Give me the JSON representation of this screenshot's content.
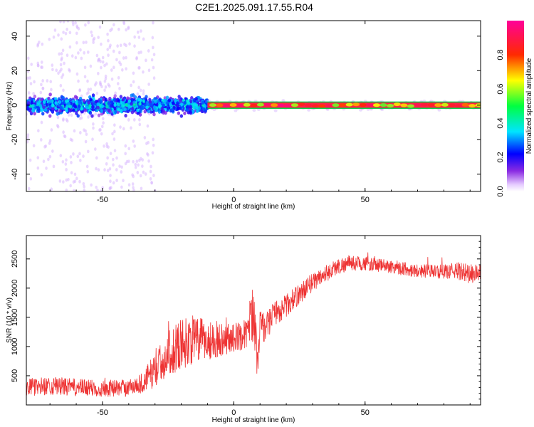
{
  "figure": {
    "title": "C2E1.2025.091.17.55.R04"
  },
  "chart_data": [
    {
      "type": "heatmap",
      "xlabel": "Height of straight line (km)",
      "ylabel": "Frequency (Hz)",
      "xlim": [
        -79,
        94
      ],
      "ylim": [
        -50,
        49
      ],
      "xticks": [
        -50,
        0,
        50
      ],
      "yticks": [
        -40,
        -20,
        0,
        20,
        40
      ],
      "colorbar": {
        "label": "Normalized spectral amplitude",
        "range": [
          0.0,
          1.0
        ],
        "ticks": [
          0.0,
          0.2,
          0.4,
          0.6,
          0.8
        ],
        "colormap": "rainbow (purple-blue-cyan-green-yellow-red-magenta)"
      },
      "features": {
        "signal_center_frequency": 0,
        "noisy_region_x": [
          -79,
          -10
        ],
        "noisy_band_halfwidth": [
          -8,
          8
        ],
        "clean_region_x": [
          -10,
          94
        ],
        "clean_line_halfwidth": [
          -1.5,
          1.5
        ],
        "sparse_scatter_region_x": [
          -79,
          -30
        ]
      }
    },
    {
      "type": "line",
      "xlabel": "Height of straight line (km)",
      "ylabel": "SNR (10 * v/v)",
      "xlim": [
        -79,
        94
      ],
      "ylim": [
        0,
        2900
      ],
      "xticks": [
        -50,
        0,
        50
      ],
      "yticks": [
        500,
        1000,
        1500,
        2000,
        2500
      ],
      "grid": false,
      "color": "#ee3333",
      "series": [
        {
          "x": [
            -79,
            -70,
            -60,
            -50,
            -40,
            -35,
            -30,
            -25,
            -20,
            -15,
            -10,
            -5,
            0,
            5,
            7,
            8,
            9,
            10,
            12,
            15,
            20,
            25,
            30,
            35,
            40,
            45,
            50,
            55,
            60,
            65,
            70,
            75,
            80,
            85,
            90,
            94
          ],
          "values": [
            300,
            330,
            300,
            280,
            300,
            370,
            600,
            880,
            1050,
            1120,
            1100,
            1130,
            1150,
            1220,
            1600,
            1450,
            650,
            1400,
            1300,
            1550,
            1700,
            1900,
            2100,
            2250,
            2380,
            2430,
            2420,
            2390,
            2370,
            2330,
            2300,
            2290,
            2280,
            2300,
            2240,
            2270
          ],
          "noise_amplitude": [
            150,
            160,
            150,
            150,
            140,
            180,
            300,
            380,
            450,
            420,
            350,
            300,
            250,
            250,
            500,
            500,
            250,
            300,
            250,
            220,
            200,
            180,
            160,
            150,
            140,
            130,
            120,
            120,
            120,
            120,
            120,
            120,
            120,
            150,
            180,
            150
          ]
        }
      ]
    }
  ]
}
